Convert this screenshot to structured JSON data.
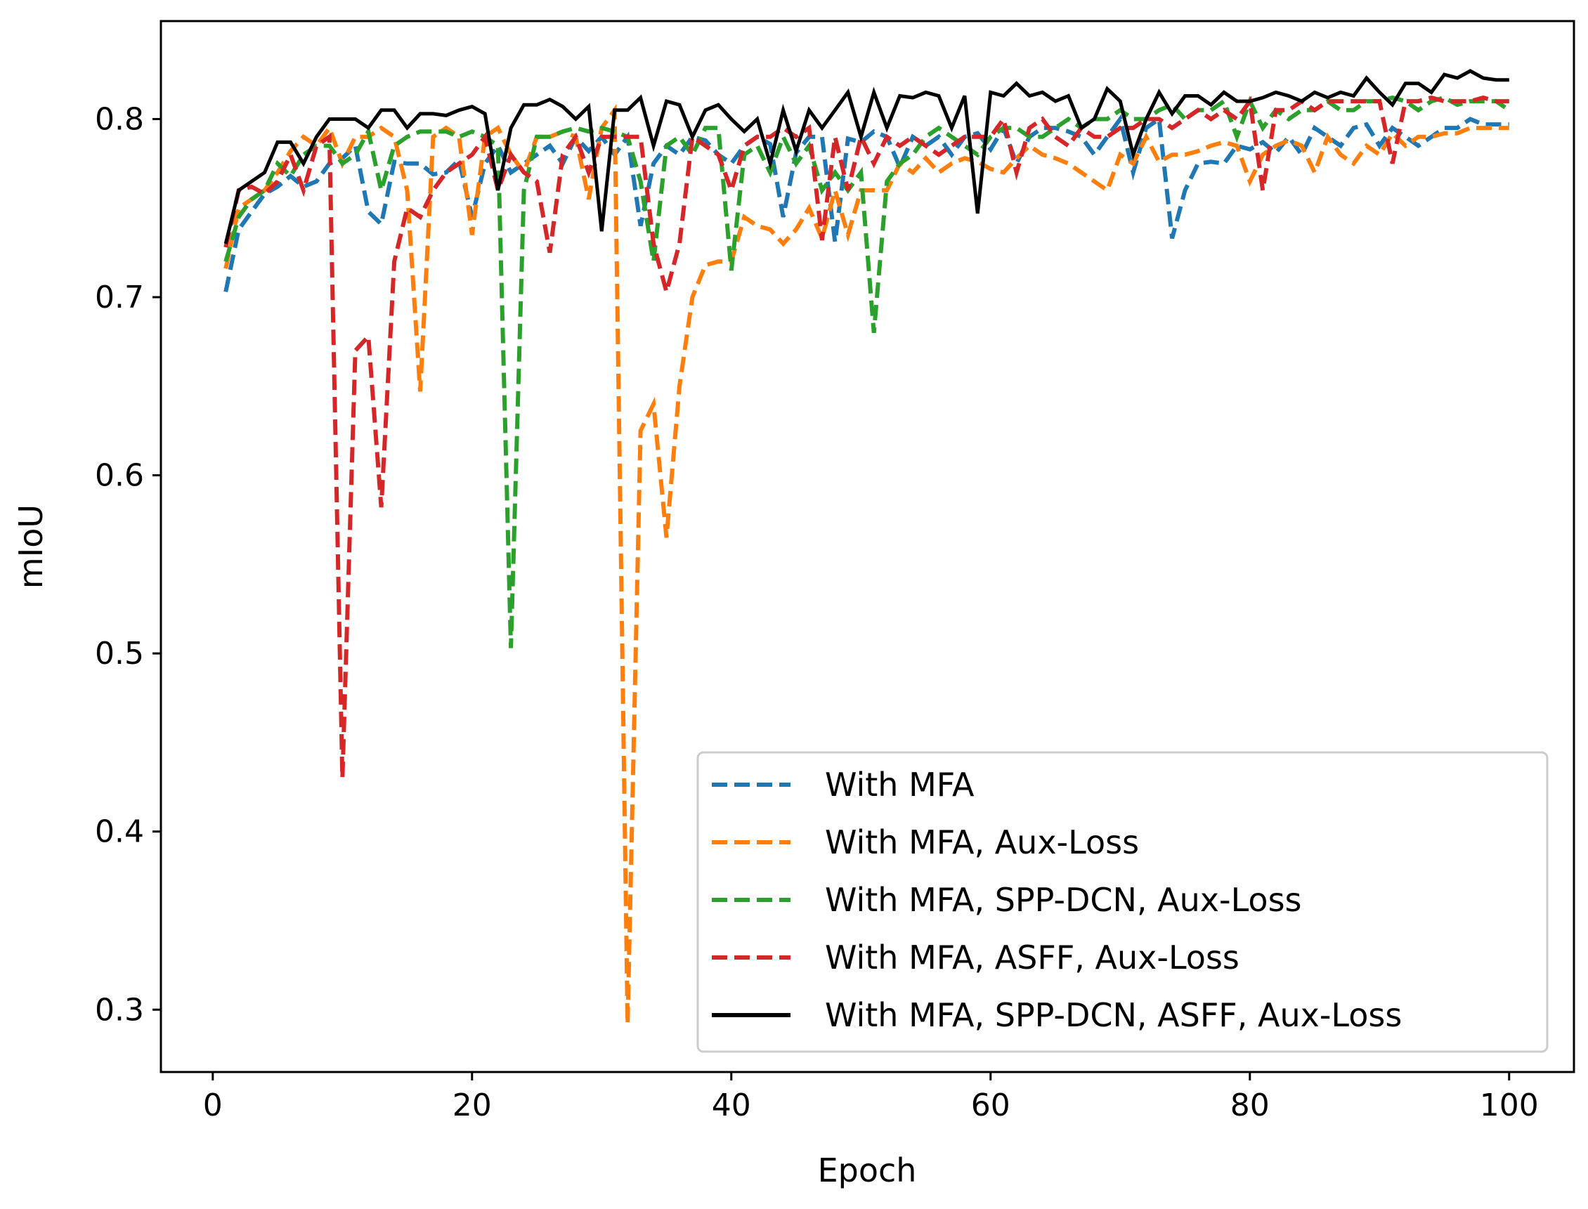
{
  "chart_data": {
    "type": "line",
    "title": "",
    "xlabel": "Epoch",
    "ylabel": "mIoU",
    "xlim": [
      -4,
      105
    ],
    "ylim": [
      0.265,
      0.855
    ],
    "xticks": [
      0,
      20,
      40,
      60,
      80,
      100
    ],
    "yticks": [
      0.3,
      0.4,
      0.5,
      0.6,
      0.7,
      0.8
    ],
    "xtick_labels": [
      "0",
      "20",
      "40",
      "60",
      "80",
      "100"
    ],
    "ytick_labels": [
      "0.3",
      "0.4",
      "0.5",
      "0.6",
      "0.7",
      "0.8"
    ],
    "grid": false,
    "legend_position": "lower-right",
    "x": [
      1,
      2,
      3,
      4,
      5,
      6,
      7,
      8,
      9,
      10,
      11,
      12,
      13,
      14,
      15,
      16,
      17,
      18,
      19,
      20,
      21,
      22,
      23,
      24,
      25,
      26,
      27,
      28,
      29,
      30,
      31,
      32,
      33,
      34,
      35,
      36,
      37,
      38,
      39,
      40,
      41,
      42,
      43,
      44,
      45,
      46,
      47,
      48,
      49,
      50,
      51,
      52,
      53,
      54,
      55,
      56,
      57,
      58,
      59,
      60,
      61,
      62,
      63,
      64,
      65,
      66,
      67,
      68,
      69,
      70,
      71,
      72,
      73,
      74,
      75,
      76,
      77,
      78,
      79,
      80,
      81,
      82,
      83,
      84,
      85,
      86,
      87,
      88,
      89,
      90,
      91,
      92,
      93,
      94,
      95,
      96,
      97,
      98,
      99,
      100
    ],
    "series": [
      {
        "name": "With MFA",
        "color": "#1f77b4",
        "dash": true,
        "values": [
          0.703,
          0.738,
          0.748,
          0.758,
          0.762,
          0.768,
          0.762,
          0.765,
          0.775,
          0.778,
          0.785,
          0.748,
          0.741,
          0.776,
          0.775,
          0.775,
          0.769,
          0.77,
          0.777,
          0.745,
          0.775,
          0.785,
          0.77,
          0.775,
          0.78,
          0.785,
          0.775,
          0.79,
          0.782,
          0.79,
          0.78,
          0.79,
          0.74,
          0.775,
          0.785,
          0.78,
          0.79,
          0.788,
          0.78,
          0.775,
          0.785,
          0.79,
          0.786,
          0.745,
          0.781,
          0.79,
          0.79,
          0.731,
          0.789,
          0.787,
          0.793,
          0.79,
          0.773,
          0.79,
          0.785,
          0.79,
          0.78,
          0.79,
          0.792,
          0.783,
          0.795,
          0.775,
          0.79,
          0.795,
          0.795,
          0.793,
          0.79,
          0.78,
          0.79,
          0.8,
          0.77,
          0.795,
          0.8,
          0.733,
          0.76,
          0.775,
          0.776,
          0.775,
          0.785,
          0.783,
          0.787,
          0.781,
          0.79,
          0.78,
          0.795,
          0.79,
          0.785,
          0.795,
          0.797,
          0.785,
          0.795,
          0.79,
          0.785,
          0.79,
          0.795,
          0.795,
          0.8,
          0.797,
          0.797,
          0.797
        ]
      },
      {
        "name": "With MFA, Aux-Loss",
        "color": "#ff7f0e",
        "dash": true,
        "values": [
          0.716,
          0.75,
          0.755,
          0.76,
          0.77,
          0.782,
          0.79,
          0.785,
          0.795,
          0.775,
          0.79,
          0.79,
          0.795,
          0.79,
          0.76,
          0.647,
          0.79,
          0.795,
          0.79,
          0.735,
          0.79,
          0.795,
          0.78,
          0.77,
          0.79,
          0.79,
          0.793,
          0.79,
          0.755,
          0.795,
          0.805,
          0.292,
          0.625,
          0.64,
          0.565,
          0.65,
          0.7,
          0.718,
          0.72,
          0.72,
          0.745,
          0.74,
          0.738,
          0.73,
          0.738,
          0.75,
          0.733,
          0.76,
          0.735,
          0.76,
          0.76,
          0.76,
          0.775,
          0.77,
          0.778,
          0.77,
          0.775,
          0.778,
          0.776,
          0.772,
          0.77,
          0.778,
          0.785,
          0.78,
          0.778,
          0.775,
          0.77,
          0.765,
          0.76,
          0.78,
          0.775,
          0.79,
          0.776,
          0.78,
          0.78,
          0.782,
          0.785,
          0.787,
          0.785,
          0.765,
          0.78,
          0.785,
          0.788,
          0.785,
          0.77,
          0.79,
          0.78,
          0.775,
          0.785,
          0.78,
          0.792,
          0.785,
          0.79,
          0.79,
          0.792,
          0.792,
          0.795,
          0.795,
          0.795,
          0.795
        ]
      },
      {
        "name": "With MFA, SPP-DCN, Aux-Loss",
        "color": "#2ca02c",
        "dash": true,
        "values": [
          0.72,
          0.745,
          0.755,
          0.76,
          0.775,
          0.768,
          0.78,
          0.785,
          0.785,
          0.775,
          0.78,
          0.793,
          0.76,
          0.785,
          0.79,
          0.793,
          0.793,
          0.793,
          0.79,
          0.793,
          0.79,
          0.785,
          0.503,
          0.76,
          0.79,
          0.79,
          0.793,
          0.795,
          0.793,
          0.795,
          0.793,
          0.79,
          0.765,
          0.72,
          0.785,
          0.79,
          0.78,
          0.795,
          0.795,
          0.715,
          0.78,
          0.785,
          0.77,
          0.79,
          0.775,
          0.785,
          0.76,
          0.77,
          0.76,
          0.77,
          0.68,
          0.765,
          0.775,
          0.78,
          0.79,
          0.795,
          0.79,
          0.785,
          0.78,
          0.79,
          0.795,
          0.795,
          0.79,
          0.79,
          0.795,
          0.8,
          0.795,
          0.8,
          0.8,
          0.805,
          0.8,
          0.8,
          0.805,
          0.808,
          0.8,
          0.805,
          0.805,
          0.81,
          0.79,
          0.81,
          0.795,
          0.805,
          0.8,
          0.805,
          0.805,
          0.81,
          0.805,
          0.805,
          0.81,
          0.81,
          0.812,
          0.81,
          0.805,
          0.81,
          0.812,
          0.808,
          0.81,
          0.81,
          0.81,
          0.805
        ]
      },
      {
        "name": "With MFA, ASFF, Aux-Loss",
        "color": "#d62728",
        "dash": true,
        "values": [
          0.728,
          0.76,
          0.762,
          0.758,
          0.765,
          0.78,
          0.76,
          0.785,
          0.79,
          0.43,
          0.67,
          0.678,
          0.582,
          0.72,
          0.75,
          0.745,
          0.76,
          0.77,
          0.775,
          0.78,
          0.79,
          0.76,
          0.78,
          0.77,
          0.765,
          0.725,
          0.78,
          0.79,
          0.77,
          0.79,
          0.79,
          0.79,
          0.79,
          0.73,
          0.703,
          0.73,
          0.79,
          0.785,
          0.78,
          0.76,
          0.785,
          0.79,
          0.79,
          0.795,
          0.79,
          0.795,
          0.732,
          0.79,
          0.76,
          0.79,
          0.775,
          0.79,
          0.785,
          0.79,
          0.785,
          0.78,
          0.785,
          0.79,
          0.79,
          0.79,
          0.8,
          0.77,
          0.795,
          0.8,
          0.79,
          0.785,
          0.795,
          0.79,
          0.79,
          0.795,
          0.795,
          0.8,
          0.8,
          0.795,
          0.8,
          0.805,
          0.8,
          0.805,
          0.8,
          0.81,
          0.76,
          0.805,
          0.805,
          0.81,
          0.805,
          0.81,
          0.81,
          0.81,
          0.81,
          0.81,
          0.775,
          0.81,
          0.81,
          0.812,
          0.81,
          0.81,
          0.81,
          0.812,
          0.81,
          0.81
        ]
      },
      {
        "name": "With MFA, SPP-DCN, ASFF, Aux-Loss",
        "color": "#000000",
        "dash": false,
        "values": [
          0.73,
          0.76,
          0.765,
          0.77,
          0.787,
          0.787,
          0.775,
          0.79,
          0.8,
          0.8,
          0.8,
          0.795,
          0.805,
          0.805,
          0.795,
          0.803,
          0.803,
          0.802,
          0.805,
          0.807,
          0.803,
          0.76,
          0.795,
          0.808,
          0.808,
          0.811,
          0.807,
          0.8,
          0.807,
          0.737,
          0.805,
          0.805,
          0.812,
          0.785,
          0.81,
          0.808,
          0.79,
          0.805,
          0.808,
          0.8,
          0.793,
          0.8,
          0.775,
          0.805,
          0.782,
          0.805,
          0.795,
          0.805,
          0.815,
          0.79,
          0.815,
          0.795,
          0.813,
          0.812,
          0.815,
          0.813,
          0.795,
          0.813,
          0.747,
          0.815,
          0.813,
          0.82,
          0.813,
          0.815,
          0.81,
          0.813,
          0.795,
          0.8,
          0.817,
          0.81,
          0.78,
          0.8,
          0.815,
          0.803,
          0.813,
          0.813,
          0.808,
          0.815,
          0.81,
          0.81,
          0.812,
          0.815,
          0.813,
          0.81,
          0.815,
          0.812,
          0.815,
          0.813,
          0.823,
          0.815,
          0.808,
          0.82,
          0.82,
          0.815,
          0.825,
          0.823,
          0.827,
          0.823,
          0.822,
          0.822
        ]
      }
    ]
  }
}
